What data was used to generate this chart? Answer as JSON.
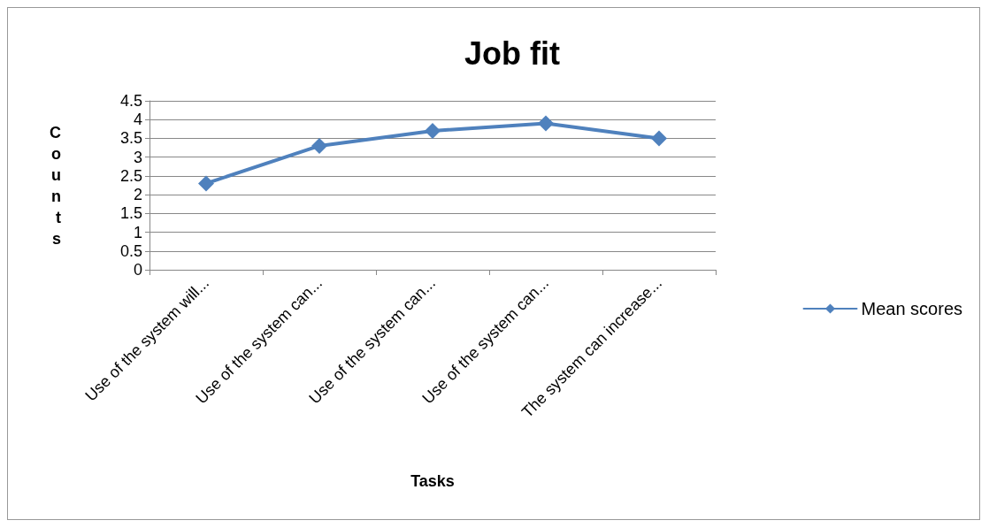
{
  "chart_data": {
    "type": "line",
    "title": "Job fit",
    "xlabel": "Tasks",
    "ylabel": "Counts",
    "categories": [
      "Use of the system will...",
      "Use of the system can...",
      "Use of the system can...",
      "Use of the system can...",
      "The system can increase..."
    ],
    "series": [
      {
        "name": "Mean scores",
        "color": "#4f81bd",
        "values": [
          2.3,
          3.3,
          3.7,
          3.9,
          3.5
        ]
      }
    ],
    "ylim": [
      0,
      4.5
    ],
    "yticks": [
      0,
      0.5,
      1,
      1.5,
      2,
      2.5,
      3,
      3.5,
      4,
      4.5
    ],
    "grid": "y",
    "legend": "right",
    "marker": "diamond",
    "line_style": "solid"
  }
}
